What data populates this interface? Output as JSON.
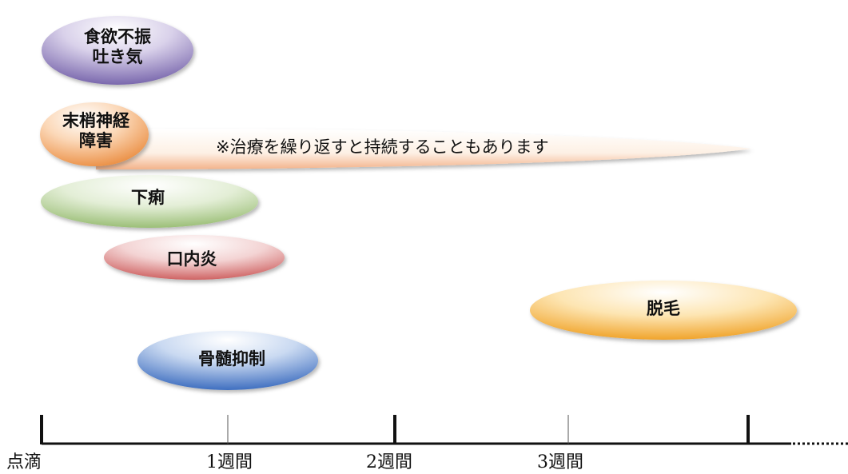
{
  "side_effects": [
    {
      "id": "nausea",
      "lines": [
        "食欲不振",
        "吐き気"
      ],
      "color": "#8a7ab8"
    },
    {
      "id": "neuropathy",
      "lines": [
        "末梢神経",
        "障害"
      ],
      "color": "#ee9c58",
      "note": "※治療を繰り返すと持続することもあります"
    },
    {
      "id": "diarrhea",
      "lines": [
        "下痢"
      ],
      "color": "#a9c98a"
    },
    {
      "id": "stomatitis",
      "lines": [
        "口内炎"
      ],
      "color": "#d97a7a"
    },
    {
      "id": "hair_loss",
      "lines": [
        "脱毛"
      ],
      "color": "#f3b84a"
    },
    {
      "id": "myelosuppression",
      "lines": [
        "骨髄抑制"
      ],
      "color": "#4f80c9"
    }
  ],
  "timeline": {
    "ticks": [
      "点滴",
      "1週間",
      "2週間",
      "3週間"
    ],
    "continues": true
  }
}
